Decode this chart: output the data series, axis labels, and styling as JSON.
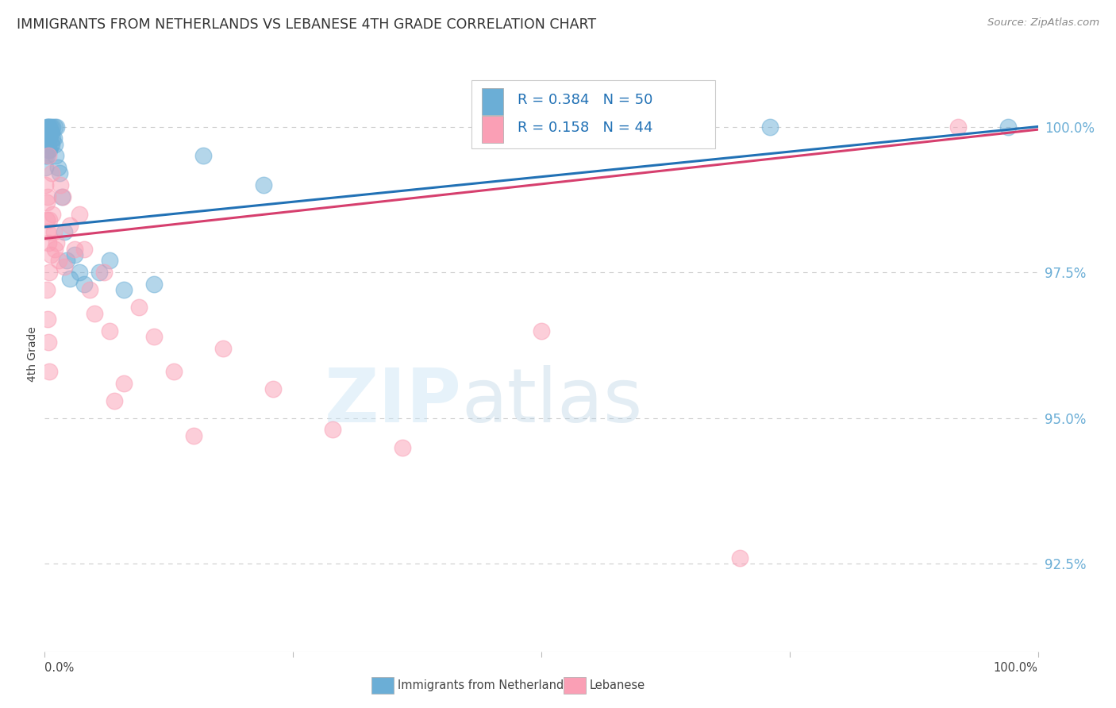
{
  "title": "IMMIGRANTS FROM NETHERLANDS VS LEBANESE 4TH GRADE CORRELATION CHART",
  "source": "Source: ZipAtlas.com",
  "ylabel": "4th Grade",
  "legend_blue_r": "R = 0.384",
  "legend_blue_n": "N = 50",
  "legend_pink_r": "R = 0.158",
  "legend_pink_n": "N = 44",
  "legend_label_blue": "Immigrants from Netherlands",
  "legend_label_pink": "Lebanese",
  "blue_color": "#6baed6",
  "pink_color": "#fa9fb5",
  "blue_line_color": "#2171b5",
  "pink_line_color": "#d63f6e",
  "legend_text_color": "#2171b5",
  "ytick_color": "#6baed6",
  "background_color": "#ffffff",
  "grid_color": "#cccccc",
  "title_color": "#333333",
  "watermark_zip": "ZIP",
  "watermark_atlas": "atlas",
  "xmin": 0.0,
  "xmax": 1.0,
  "ymin": 91.0,
  "ymax": 101.2,
  "yticks": [
    92.5,
    95.0,
    97.5,
    100.0
  ],
  "blue_x": [
    0.001,
    0.001,
    0.001,
    0.002,
    0.002,
    0.002,
    0.002,
    0.002,
    0.003,
    0.003,
    0.003,
    0.003,
    0.003,
    0.004,
    0.004,
    0.004,
    0.004,
    0.005,
    0.005,
    0.005,
    0.005,
    0.006,
    0.006,
    0.006,
    0.007,
    0.007,
    0.008,
    0.008,
    0.009,
    0.01,
    0.01,
    0.011,
    0.012,
    0.013,
    0.015,
    0.017,
    0.02,
    0.022,
    0.025,
    0.03,
    0.035,
    0.04,
    0.055,
    0.065,
    0.08,
    0.11,
    0.16,
    0.22,
    0.73,
    0.97
  ],
  "blue_y": [
    99.7,
    99.5,
    99.3,
    100.0,
    99.9,
    99.8,
    99.7,
    99.5,
    100.0,
    99.9,
    99.8,
    99.7,
    99.6,
    100.0,
    99.9,
    99.8,
    99.6,
    100.0,
    99.9,
    99.8,
    99.6,
    100.0,
    99.9,
    99.7,
    99.9,
    99.7,
    100.0,
    99.8,
    99.8,
    100.0,
    99.7,
    99.5,
    100.0,
    99.3,
    99.2,
    98.8,
    98.2,
    97.7,
    97.4,
    97.8,
    97.5,
    97.3,
    97.5,
    97.7,
    97.2,
    97.3,
    99.5,
    99.0,
    100.0,
    100.0
  ],
  "pink_x": [
    0.001,
    0.002,
    0.002,
    0.003,
    0.003,
    0.004,
    0.004,
    0.005,
    0.005,
    0.006,
    0.007,
    0.008,
    0.009,
    0.01,
    0.012,
    0.014,
    0.016,
    0.018,
    0.02,
    0.025,
    0.03,
    0.035,
    0.04,
    0.045,
    0.05,
    0.06,
    0.065,
    0.07,
    0.08,
    0.095,
    0.11,
    0.13,
    0.15,
    0.18,
    0.23,
    0.29,
    0.36,
    0.5,
    0.7,
    0.92,
    0.002,
    0.003,
    0.004,
    0.005
  ],
  "pink_y": [
    99.0,
    98.7,
    98.4,
    98.8,
    98.2,
    98.0,
    99.5,
    98.4,
    97.5,
    97.8,
    99.2,
    98.5,
    98.2,
    97.9,
    98.0,
    97.7,
    99.0,
    98.8,
    97.6,
    98.3,
    97.9,
    98.5,
    97.9,
    97.2,
    96.8,
    97.5,
    96.5,
    95.3,
    95.6,
    96.9,
    96.4,
    95.8,
    94.7,
    96.2,
    95.5,
    94.8,
    94.5,
    96.5,
    92.6,
    100.0,
    97.2,
    96.7,
    96.3,
    95.8
  ],
  "blue_trend_x": [
    0.0,
    1.0
  ],
  "blue_trend_y": [
    98.28,
    100.0
  ],
  "pink_trend_x": [
    0.0,
    1.0
  ],
  "pink_trend_y": [
    98.08,
    99.95
  ]
}
